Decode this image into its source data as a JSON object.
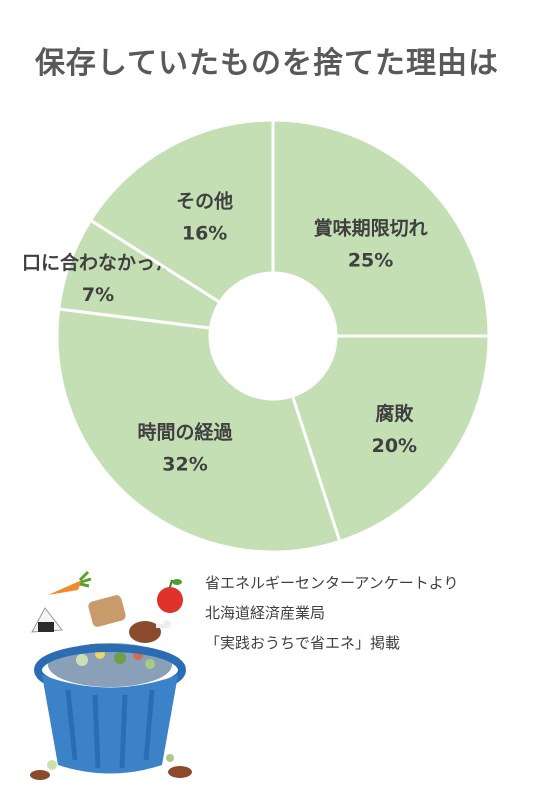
{
  "title": "保存していたものを捨てた理由は",
  "chart_data": {
    "type": "pie",
    "style": "donut",
    "categories": [
      "賞味期限切れ",
      "腐敗",
      "時間の経過",
      "口に合わなかった",
      "その他"
    ],
    "values": [
      25,
      20,
      32,
      7,
      16
    ],
    "value_labels": [
      "25%",
      "20%",
      "32%",
      "7%",
      "16%"
    ],
    "colors": {
      "slice": "#c5dfb5",
      "separator": "#ffffff",
      "label": "#404040"
    }
  },
  "source": {
    "line1": "省エネルギーセンターアンケートより",
    "line2": "北海道経済産業局",
    "line3": "「実践おうちで省エネ」掲載"
  }
}
